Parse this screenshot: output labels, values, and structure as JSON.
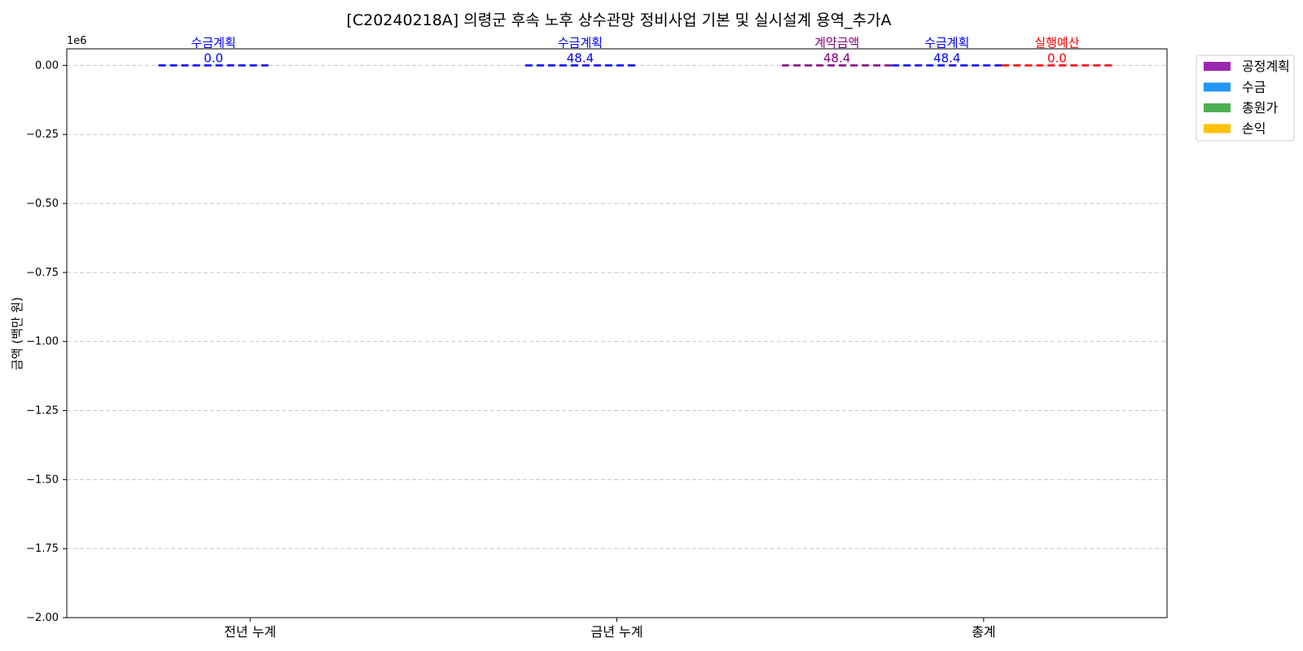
{
  "chart_data": {
    "type": "bar",
    "title": "[C20240218A] 의령군 후속 노후 상수관망 정비사업 기본 및 실시설계 용역_추가A",
    "xlabel": "",
    "ylabel": "금액 (백만 원)",
    "y_offset_text": "1e6",
    "ylim": [
      -2.0,
      0.06
    ],
    "yticks": [
      0.0,
      -0.25,
      -0.5,
      -0.75,
      -1.0,
      -1.25,
      -1.5,
      -1.75,
      -2.0
    ],
    "ytick_labels": [
      "0.00",
      "−0.25",
      "−0.50",
      "−0.75",
      "−1.00",
      "−1.25",
      "−1.50",
      "−1.75",
      "−2.00"
    ],
    "categories": [
      "전년 누계",
      "금년 누계",
      "총계"
    ],
    "grid": "y-dashed",
    "legend_position": "outside-top-right",
    "series": [
      {
        "name": "공정계획",
        "color": "#9c27b0",
        "values": [
          0,
          0,
          0
        ]
      },
      {
        "name": "수금",
        "color": "#2196f3",
        "values": [
          0,
          0,
          0
        ]
      },
      {
        "name": "총원가",
        "color": "#4caf50",
        "values": [
          0,
          0,
          0
        ]
      },
      {
        "name": "손익",
        "color": "#ffc107",
        "values": [
          0,
          0,
          0
        ]
      }
    ],
    "reference_lines": [
      {
        "category": "전년 누계",
        "slot": 0,
        "label": "수금계획",
        "value_text": "0.0",
        "value": 0.0,
        "color": "#0000ff"
      },
      {
        "category": "금년 누계",
        "slot": 0,
        "label": "수금계획",
        "value_text": "48.4",
        "value": 48.4,
        "color": "#0000ff"
      },
      {
        "category": "총계",
        "slot": -1,
        "label": "계약금액",
        "value_text": "48.4",
        "value": 48.4,
        "color": "#800080"
      },
      {
        "category": "총계",
        "slot": 0,
        "label": "수금계획",
        "value_text": "48.4",
        "value": 48.4,
        "color": "#0000ff"
      },
      {
        "category": "총계",
        "slot": 1,
        "label": "실행예산",
        "value_text": "0.0",
        "value": 0.0,
        "color": "#ff0000"
      }
    ]
  }
}
